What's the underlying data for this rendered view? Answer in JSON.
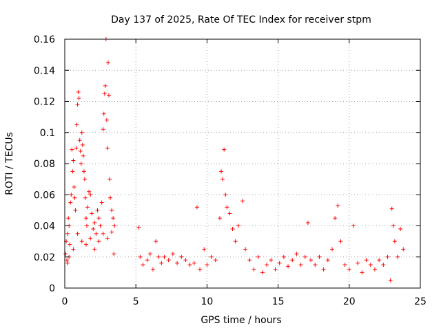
{
  "chart_data": {
    "type": "scatter",
    "title": "Day 137 of 2025, Rate Of TEC Index for receiver stpm",
    "xlabel": "GPS time / hours",
    "ylabel": "ROTI / TECUs",
    "xlim": [
      0,
      25
    ],
    "ylim": [
      0,
      0.16
    ],
    "x_ticks": [
      0,
      5,
      10,
      15,
      20,
      25
    ],
    "x_tick_labels": [
      "0",
      "5",
      "10",
      "15",
      "20",
      "25"
    ],
    "y_ticks": [
      0,
      0.02,
      0.04,
      0.06,
      0.08,
      0.1,
      0.12,
      0.14,
      0.16
    ],
    "y_tick_labels": [
      "0",
      "0.02",
      "0.04",
      "0.06",
      "0.08",
      "0.1",
      "0.12",
      "0.14",
      "0.16"
    ],
    "grid": true,
    "marker": "plus",
    "marker_color": "#ff0000",
    "series": [
      {
        "name": "stpm ROTI",
        "points": [
          [
            0.05,
            0.022
          ],
          [
            0.1,
            0.03
          ],
          [
            0.15,
            0.018
          ],
          [
            0.2,
            0.035
          ],
          [
            0.25,
            0.045
          ],
          [
            0.3,
            0.04
          ],
          [
            0.35,
            0.028
          ],
          [
            0.4,
            0.055
          ],
          [
            0.45,
            0.06
          ],
          [
            0.5,
            0.089
          ],
          [
            0.55,
            0.075
          ],
          [
            0.6,
            0.082
          ],
          [
            0.65,
            0.065
          ],
          [
            0.7,
            0.058
          ],
          [
            0.75,
            0.05
          ],
          [
            0.8,
            0.09
          ],
          [
            0.85,
            0.105
          ],
          [
            0.9,
            0.118
          ],
          [
            0.95,
            0.126
          ],
          [
            1.0,
            0.122
          ],
          [
            1.05,
            0.095
          ],
          [
            1.1,
            0.088
          ],
          [
            1.15,
            0.08
          ],
          [
            1.2,
            0.1
          ],
          [
            1.25,
            0.092
          ],
          [
            1.3,
            0.085
          ],
          [
            1.35,
            0.075
          ],
          [
            1.4,
            0.07
          ],
          [
            1.45,
            0.058
          ],
          [
            1.5,
            0.045
          ],
          [
            1.55,
            0.04
          ],
          [
            1.6,
            0.052
          ],
          [
            1.7,
            0.062
          ],
          [
            1.8,
            0.06
          ],
          [
            1.9,
            0.048
          ],
          [
            2.0,
            0.038
          ],
          [
            2.1,
            0.042
          ],
          [
            2.2,
            0.035
          ],
          [
            2.3,
            0.05
          ],
          [
            2.4,
            0.045
          ],
          [
            2.5,
            0.04
          ],
          [
            2.6,
            0.055
          ],
          [
            2.7,
            0.102
          ],
          [
            2.75,
            0.112
          ],
          [
            2.8,
            0.125
          ],
          [
            2.85,
            0.13
          ],
          [
            2.9,
            0.16
          ],
          [
            2.95,
            0.108
          ],
          [
            3.0,
            0.09
          ],
          [
            3.05,
            0.145
          ],
          [
            3.1,
            0.124
          ],
          [
            3.15,
            0.07
          ],
          [
            3.2,
            0.058
          ],
          [
            3.3,
            0.05
          ],
          [
            3.4,
            0.045
          ],
          [
            3.5,
            0.04
          ],
          [
            0.2,
            0.016
          ],
          [
            0.3,
            0.02
          ],
          [
            0.6,
            0.025
          ],
          [
            0.9,
            0.035
          ],
          [
            1.2,
            0.03
          ],
          [
            1.5,
            0.028
          ],
          [
            1.8,
            0.032
          ],
          [
            2.1,
            0.025
          ],
          [
            2.4,
            0.03
          ],
          [
            2.7,
            0.035
          ],
          [
            3.0,
            0.032
          ],
          [
            3.3,
            0.036
          ],
          [
            3.45,
            0.022
          ],
          [
            5.2,
            0.039
          ],
          [
            5.3,
            0.02
          ],
          [
            5.5,
            0.015
          ],
          [
            5.8,
            0.018
          ],
          [
            6.0,
            0.022
          ],
          [
            6.2,
            0.012
          ],
          [
            6.4,
            0.03
          ],
          [
            6.6,
            0.02
          ],
          [
            6.8,
            0.016
          ],
          [
            7.0,
            0.02
          ],
          [
            7.3,
            0.018
          ],
          [
            7.6,
            0.022
          ],
          [
            7.9,
            0.016
          ],
          [
            8.2,
            0.02
          ],
          [
            8.5,
            0.018
          ],
          [
            8.8,
            0.015
          ],
          [
            9.1,
            0.016
          ],
          [
            9.3,
            0.052
          ],
          [
            9.5,
            0.012
          ],
          [
            9.8,
            0.025
          ],
          [
            10.0,
            0.015
          ],
          [
            10.3,
            0.02
          ],
          [
            10.6,
            0.018
          ],
          [
            10.9,
            0.045
          ],
          [
            11.0,
            0.075
          ],
          [
            11.1,
            0.07
          ],
          [
            11.2,
            0.089
          ],
          [
            11.3,
            0.06
          ],
          [
            11.4,
            0.052
          ],
          [
            11.6,
            0.048
          ],
          [
            11.8,
            0.038
          ],
          [
            12.0,
            0.03
          ],
          [
            12.2,
            0.04
          ],
          [
            12.5,
            0.056
          ],
          [
            12.7,
            0.025
          ],
          [
            13.0,
            0.018
          ],
          [
            13.3,
            0.012
          ],
          [
            13.6,
            0.02
          ],
          [
            13.9,
            0.01
          ],
          [
            14.2,
            0.015
          ],
          [
            14.5,
            0.018
          ],
          [
            14.8,
            0.012
          ],
          [
            15.1,
            0.016
          ],
          [
            15.4,
            0.02
          ],
          [
            15.7,
            0.014
          ],
          [
            16.0,
            0.018
          ],
          [
            16.3,
            0.022
          ],
          [
            16.6,
            0.015
          ],
          [
            16.9,
            0.02
          ],
          [
            17.1,
            0.042
          ],
          [
            17.3,
            0.018
          ],
          [
            17.6,
            0.015
          ],
          [
            17.9,
            0.02
          ],
          [
            18.2,
            0.012
          ],
          [
            18.5,
            0.018
          ],
          [
            18.8,
            0.025
          ],
          [
            19.0,
            0.045
          ],
          [
            19.2,
            0.053
          ],
          [
            19.4,
            0.03
          ],
          [
            19.7,
            0.015
          ],
          [
            20.0,
            0.012
          ],
          [
            20.3,
            0.04
          ],
          [
            20.6,
            0.016
          ],
          [
            20.9,
            0.01
          ],
          [
            21.2,
            0.018
          ],
          [
            21.5,
            0.015
          ],
          [
            21.8,
            0.012
          ],
          [
            22.1,
            0.018
          ],
          [
            22.4,
            0.015
          ],
          [
            22.7,
            0.02
          ],
          [
            22.9,
            0.005
          ],
          [
            23.0,
            0.051
          ],
          [
            23.1,
            0.04
          ],
          [
            23.2,
            0.03
          ],
          [
            23.4,
            0.02
          ],
          [
            23.6,
            0.038
          ],
          [
            23.8,
            0.025
          ]
        ]
      }
    ]
  }
}
